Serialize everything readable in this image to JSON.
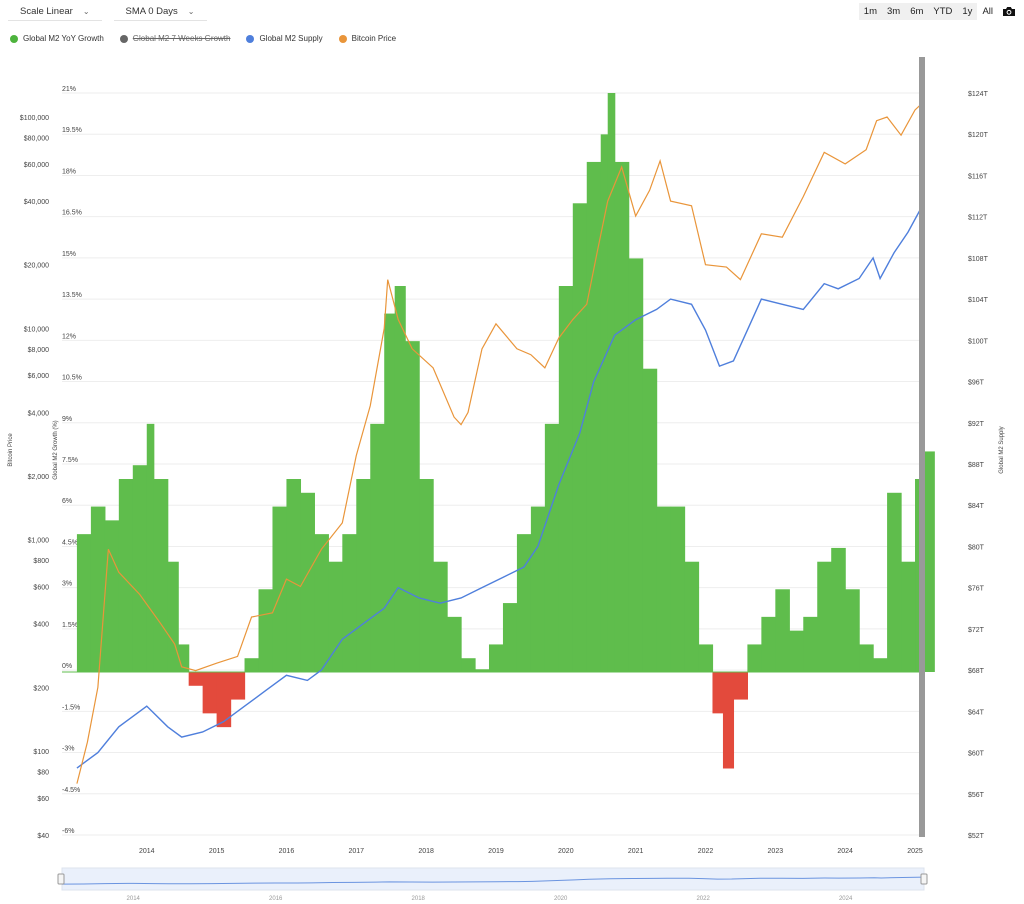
{
  "toolbar": {
    "scale_label": "Scale Linear",
    "sma_label": "SMA 0 Days",
    "ranges": [
      "1m",
      "3m",
      "6m",
      "YTD",
      "1y",
      "All"
    ],
    "active_range": "All"
  },
  "legend": [
    {
      "label": "Global M2 YoY Growth",
      "color": "#4db33d",
      "enabled": true
    },
    {
      "label": "Global M2 7 Weeks Growth",
      "color": "#666666",
      "enabled": false
    },
    {
      "label": "Global M2 Supply",
      "color": "#4f7fdc",
      "enabled": true
    },
    {
      "label": "Bitcoin Price",
      "color": "#e9953a",
      "enabled": true
    }
  ],
  "chart_data": {
    "type": "bar",
    "x_ticks": [
      "2014",
      "2015",
      "2016",
      "2017",
      "2018",
      "2019",
      "2020",
      "2021",
      "2022",
      "2023",
      "2024",
      "2025"
    ],
    "navigator_ticks": [
      "2014",
      "2016",
      "2018",
      "2020",
      "2022",
      "2024"
    ],
    "left_axis": {
      "label": "Bitcoin Price",
      "scale": "log",
      "ticks": [
        "$100,000",
        "$80,000",
        "$60,000",
        "$40,000",
        "$20,000",
        "$10,000",
        "$8,000",
        "$6,000",
        "$4,000",
        "$2,000",
        "$1,000",
        "$800",
        "$600",
        "$400",
        "$200",
        "$100",
        "$80",
        "$60",
        "$40"
      ],
      "range": [
        40,
        100000
      ]
    },
    "inner_axis": {
      "label": "Global M2 Growth (%)",
      "ticks": [
        "21%",
        "19.5%",
        "18%",
        "16.5%",
        "15%",
        "13.5%",
        "12%",
        "10.5%",
        "9%",
        "7.5%",
        "6%",
        "4.5%",
        "3%",
        "1.5%",
        "0%",
        "-1.5%",
        "-3%",
        "-4.5%",
        "-6%"
      ],
      "range": [
        -6,
        22
      ]
    },
    "right_axis": {
      "label": "Global M2 Supply",
      "ticks": [
        "$124T",
        "$120T",
        "$116T",
        "$112T",
        "$108T",
        "$104T",
        "$100T",
        "$96T",
        "$92T",
        "$88T",
        "$84T",
        "$80T",
        "$76T",
        "$72T",
        "$68T",
        "$64T",
        "$60T",
        "$56T",
        "$52T"
      ],
      "range": [
        52,
        124
      ]
    },
    "growth_series": {
      "name": "Global M2 YoY Growth",
      "x": [
        2013.5,
        2013.7,
        2013.9,
        2014.1,
        2014.3,
        2014.5,
        2014.6,
        2014.8,
        2014.95,
        2015.1,
        2015.3,
        2015.5,
        2015.7,
        2015.9,
        2016.1,
        2016.3,
        2016.5,
        2016.7,
        2016.9,
        2017.1,
        2017.3,
        2017.5,
        2017.7,
        2017.9,
        2018.05,
        2018.2,
        2018.4,
        2018.6,
        2018.8,
        2019.0,
        2019.2,
        2019.4,
        2019.6,
        2019.8,
        2020.0,
        2020.2,
        2020.4,
        2020.6,
        2020.8,
        2021.0,
        2021.1,
        2021.2,
        2021.4,
        2021.6,
        2021.8,
        2022.0,
        2022.2,
        2022.4,
        2022.6,
        2022.75,
        2022.9,
        2023.1,
        2023.3,
        2023.5,
        2023.7,
        2023.9,
        2024.1,
        2024.3,
        2024.5,
        2024.7,
        2024.9,
        2025.1,
        2025.3,
        2025.5,
        2025.6
      ],
      "values": [
        5.0,
        6.0,
        5.5,
        7.0,
        7.5,
        9.0,
        7.0,
        4.0,
        1.0,
        -0.5,
        -1.5,
        -2.0,
        -1.0,
        0.5,
        3.0,
        6.0,
        7.0,
        6.5,
        5.0,
        4.0,
        5.0,
        7.0,
        9.0,
        13.0,
        14.0,
        12.0,
        7.0,
        4.0,
        2.0,
        0.5,
        0.1,
        1.0,
        2.5,
        5.0,
        6.0,
        9.0,
        14.0,
        17.0,
        18.5,
        19.5,
        21.0,
        18.5,
        15.0,
        11.0,
        6.0,
        6.0,
        4.0,
        1.0,
        -1.5,
        -3.5,
        -1.0,
        1.0,
        2.0,
        3.0,
        1.5,
        2.0,
        4.0,
        4.5,
        3.0,
        1.0,
        0.5,
        6.5,
        4.0,
        7.0,
        8.0
      ]
    },
    "m2_supply_series": {
      "name": "Global M2 Supply",
      "unit": "$T",
      "x": [
        2013.5,
        2013.8,
        2014.1,
        2014.5,
        2014.8,
        2015.0,
        2015.3,
        2015.6,
        2015.9,
        2016.2,
        2016.5,
        2016.8,
        2017.0,
        2017.3,
        2017.6,
        2017.9,
        2018.1,
        2018.4,
        2018.7,
        2019.0,
        2019.3,
        2019.6,
        2019.9,
        2020.1,
        2020.4,
        2020.7,
        2020.9,
        2021.2,
        2021.5,
        2021.8,
        2022.0,
        2022.3,
        2022.5,
        2022.7,
        2022.9,
        2023.1,
        2023.3,
        2023.6,
        2023.9,
        2024.2,
        2024.4,
        2024.7,
        2024.9,
        2025.0,
        2025.2,
        2025.4,
        2025.6
      ],
      "values": [
        58.5,
        60.0,
        62.5,
        64.5,
        62.5,
        61.5,
        62.0,
        63.0,
        64.5,
        66.0,
        67.5,
        67.0,
        68.0,
        71.0,
        72.5,
        74.0,
        76.0,
        75.0,
        74.5,
        75.0,
        76.0,
        77.0,
        78.0,
        80.0,
        86.0,
        91.0,
        96.0,
        100.5,
        102.0,
        103.0,
        104.0,
        103.5,
        101.0,
        97.5,
        98.0,
        101.0,
        104.0,
        103.5,
        103.0,
        105.5,
        105.0,
        106.0,
        108.0,
        106.0,
        108.5,
        110.5,
        113.0
      ]
    },
    "btc_series": {
      "name": "Bitcoin Price",
      "unit": "$",
      "x": [
        2013.5,
        2013.65,
        2013.8,
        2013.95,
        2014.1,
        2014.4,
        2014.7,
        2014.9,
        2015.0,
        2015.2,
        2015.5,
        2015.8,
        2016.0,
        2016.3,
        2016.5,
        2016.7,
        2017.0,
        2017.3,
        2017.5,
        2017.7,
        2017.9,
        2017.95,
        2018.1,
        2018.3,
        2018.6,
        2018.9,
        2019.0,
        2019.1,
        2019.3,
        2019.5,
        2019.8,
        2020.0,
        2020.2,
        2020.4,
        2020.6,
        2020.8,
        2020.95,
        2021.1,
        2021.3,
        2021.5,
        2021.7,
        2021.85,
        2022.0,
        2022.3,
        2022.5,
        2022.8,
        2023.0,
        2023.3,
        2023.6,
        2023.9,
        2024.2,
        2024.5,
        2024.8,
        2024.95,
        2025.1,
        2025.3,
        2025.5,
        2025.6
      ],
      "values": [
        70,
        110,
        200,
        900,
        700,
        550,
        400,
        320,
        250,
        240,
        260,
        280,
        430,
        450,
        650,
        600,
        900,
        1200,
        2500,
        4300,
        10000,
        17000,
        11000,
        8000,
        6500,
        3800,
        3500,
        4000,
        8000,
        10500,
        8000,
        7500,
        6500,
        9000,
        11000,
        13000,
        23000,
        40000,
        58000,
        34000,
        45000,
        62000,
        40000,
        38000,
        20000,
        19500,
        17000,
        28000,
        27000,
        42000,
        68000,
        60000,
        70000,
        96000,
        100000,
        82000,
        108000,
        116000
      ]
    }
  }
}
